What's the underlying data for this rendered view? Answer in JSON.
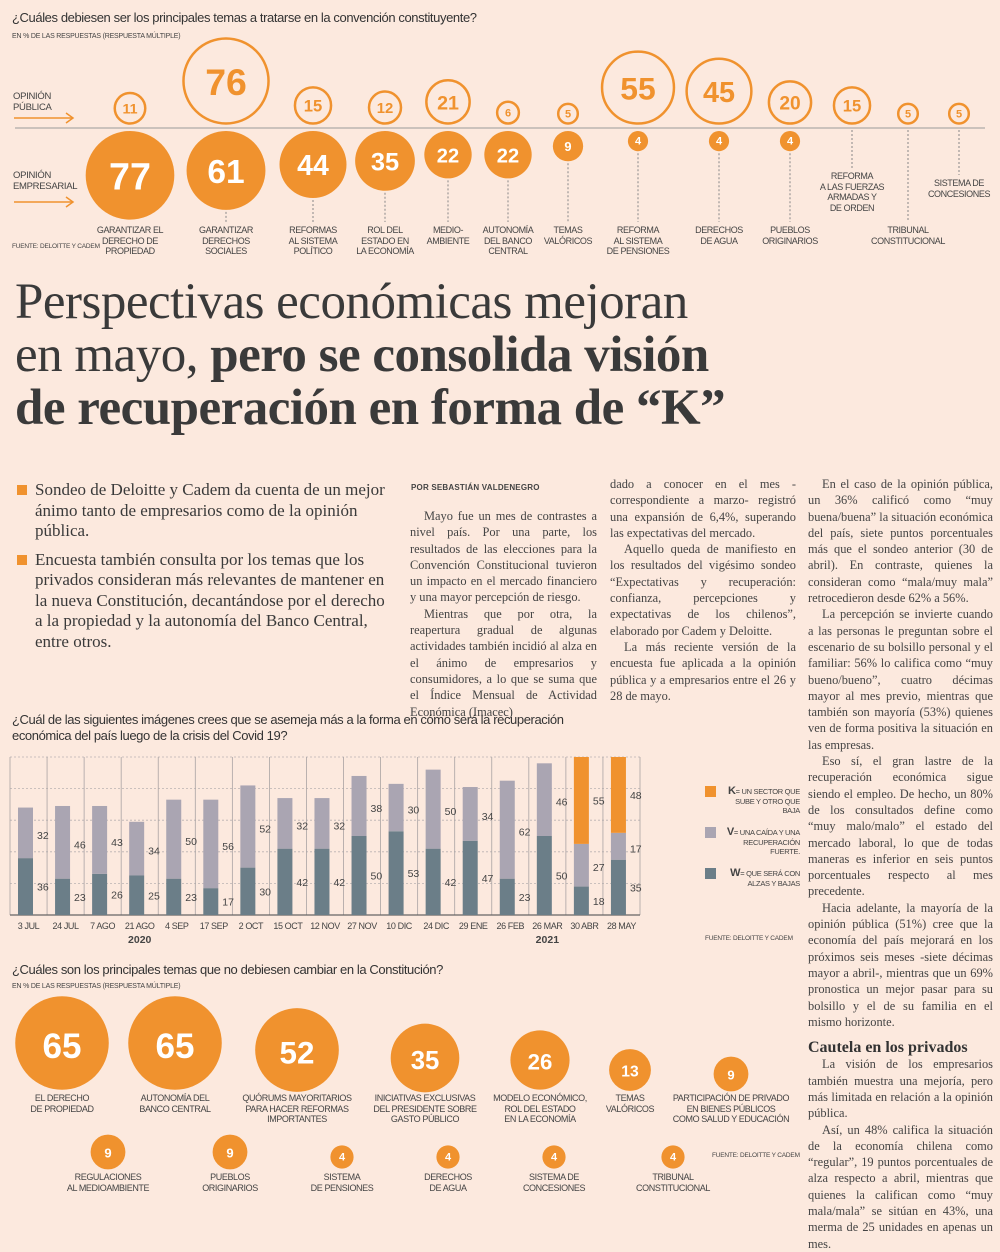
{
  "top_chart": {
    "title": "¿Cuáles debiesen ser los principales temas a tratarse en la convención constituyente?",
    "subtitle": "EN % DE LAS RESPUESTAS (RESPUESTA MÚLTIPLE)",
    "public_label": "OPINIÓN\nPÚBLICA",
    "business_label": "OPINIÓN\nEMPRESARIAL",
    "source": "FUENTE: DELOITTE Y CADEM",
    "accent_color": "#f0922e",
    "items": [
      {
        "label": "GARANTIZAR EL\nDERECHO DE\nPROPIEDAD",
        "public": 11,
        "business": 77
      },
      {
        "label": "GARANTIZAR\nDERECHOS\nSOCIALES",
        "public": 76,
        "business": 61
      },
      {
        "label": "REFORMAS\nAL SISTEMA\nPOLÍTICO",
        "public": 15,
        "business": 44
      },
      {
        "label": "ROL DEL\nESTADO EN\nLA ECONOMÍA",
        "public": 12,
        "business": 35
      },
      {
        "label": "MEDIO-\nAMBIENTE",
        "public": 21,
        "business": 22
      },
      {
        "label": "AUTONOMÍA\nDEL BANCO\nCENTRAL",
        "public": 6,
        "business": 22
      },
      {
        "label": "TEMAS\nVALÓRICOS",
        "public": 5,
        "business": 9
      },
      {
        "label": "REFORMA\nAL SISTEMA\nDE PENSIONES",
        "public": 55,
        "business": 4
      },
      {
        "label": "DERECHOS\nDE AGUA",
        "public": 45,
        "business": 4
      },
      {
        "label": "PUEBLOS\nORIGINARIOS",
        "public": 20,
        "business": 4
      },
      {
        "label": "REFORMA\nA LAS FUERZAS\nARMADAS Y\nDE ORDEN",
        "public": 15,
        "business": null
      },
      {
        "label": "TRIBUNAL\nCONSTITUCIONAL",
        "public": 5,
        "business": null
      },
      {
        "label": "SISTEMA DE\nCONCESIONES",
        "public": 5,
        "business": null
      }
    ]
  },
  "headline": {
    "light_1": "Perspectivas económicas mejoran",
    "light_2": "en mayo, ",
    "bold_2": "pero se consolida visión",
    "bold_3": "de recuperación en forma de “K”"
  },
  "bullets": [
    "Sondeo de Deloitte y Cadem da cuenta de un mejor ánimo tanto de empresarios como de la opinión pública.",
    "Encuesta también consulta por los temas que los privados consideran más relevantes de mantener en la nueva Constitución, decantándose por el derecho a la propiedad y la autonomía del Banco Central, entre otros."
  ],
  "article": {
    "byline": "POR SEBASTIÁN VALDENEGRO",
    "col1": [
      "Mayo fue un mes de contrastes a nivel país. Por una parte, los resultados de las elecciones para la Convención Constitucional tuvieron un impacto en el mercado financiero y una mayor percepción de riesgo.",
      "Mientras que por otra, la reapertura gradual de algunas actividades también incidió al alza en el ánimo de empresarios y consumidores, a lo que se suma que el Índice Mensual de Actividad Económica (Imacec)"
    ],
    "col2": [
      "dado a conocer en el mes -correspondiente a marzo- registró una expansión de 6,4%, superando las expectativas del mercado.",
      "Aquello queda de manifiesto en los resultados del vigésimo sondeo “Expectativas y recuperación: confianza, percepciones y expectativas de los chilenos”, elaborado por Cadem y Deloitte.",
      "La más reciente versión de la encuesta fue aplicada a la opinión pública y a empresarios entre el 26 y 28 de mayo."
    ],
    "col3": [
      "En el caso de la opinión pública, un 36% calificó como “muy buena/buena” la situación económica del país, siete puntos porcentuales más que el sondeo anterior (30 de abril). En contraste, quienes la consideran como “mala/muy mala” retrocedieron desde 62% a 56%.",
      "La percepción se invierte cuando a las personas le preguntan sobre el escenario de su bolsillo personal y el familiar: 56% lo califica como “muy bueno/bueno”, cuatro décimas mayor al mes previo, mientras que también son mayoría (53%) quienes ven de forma positiva la situación en las empresas.",
      "Eso sí, el gran lastre de la recuperación económica sigue siendo el empleo. De hecho, un 80% de los consultados define como “muy malo/malo” el estado del mercado laboral, lo que de todas maneras es inferior en seis puntos porcentuales respecto al mes precedente.",
      "Hacia adelante, la mayoría de la opinión pública (51%) cree que la economía del país mejorará en los próximos seis meses -siete décimas mayor a abril-, mientras que un 69% pronostica un mejor pasar para su bolsillo y el de su familia en el mismo horizonte."
    ],
    "subhead": "Cautela en los privados",
    "col3b": [
      "La visión de los empresarios también muestra una mejoría, pero más limitada en relación a la opinión pública.",
      "Así, un 48% califica la situación de la economía chilena como “regular”, 19 puntos porcentuales de alza respecto a abril, mientras que quienes la califican como “muy mala/mala” se sitúan en 43%, una merma de 25 unidades en apenas un mes."
    ]
  },
  "chart_data": {
    "type": "bar",
    "stacked": true,
    "title": "¿Cuál de las siguientes imágenes crees que se asemeja más a la forma en cómo será la recuperación económica del país luego de la crisis del Covid 19?",
    "categories": [
      "3 JUL",
      "24 JUL",
      "7 AGO",
      "21 AGO",
      "4 SEP",
      "17 SEP",
      "2 OCT",
      "15 OCT",
      "12 NOV",
      "27 NOV",
      "10 DIC",
      "24 DIC",
      "29 ENE",
      "26 FEB",
      "26 MAR",
      "30 ABR",
      "28 MAY"
    ],
    "year_labels": [
      {
        "label": "2020",
        "under": "21 AGO"
      },
      {
        "label": "2021",
        "under": "26 MAR"
      }
    ],
    "ylim": [
      0,
      100
    ],
    "grid": true,
    "legend_position": "right",
    "series": [
      {
        "name": "W",
        "legend": "QUE SERÁ CON ALZAS Y BAJAS",
        "color": "#6b7e88",
        "values": [
          36,
          23,
          26,
          25,
          23,
          17,
          30,
          42,
          42,
          50,
          53,
          42,
          47,
          23,
          50,
          18,
          35
        ]
      },
      {
        "name": "V",
        "legend": "UNA CAÍDA Y UNA RECUPERACIÓN FUERTE.",
        "color": "#aaa5b2",
        "values": [
          32,
          46,
          43,
          34,
          50,
          56,
          52,
          32,
          32,
          38,
          30,
          50,
          34,
          62,
          46,
          27,
          17
        ]
      },
      {
        "name": "K",
        "legend": "UN SECTOR QUE SUBE Y OTRO QUE BAJA",
        "color": "#f0922e",
        "values": [
          null,
          null,
          null,
          null,
          null,
          null,
          null,
          null,
          null,
          null,
          null,
          null,
          null,
          null,
          null,
          55,
          48
        ]
      }
    ],
    "source": "FUENTE: DELOITTE Y CADEM"
  },
  "bottom_chart": {
    "title": "¿Cuáles son los principales temas que no debiesen cambiar en la Constitución?",
    "subtitle": "EN % DE LAS RESPUESTAS (RESPUESTA MÚLTIPLE)",
    "source": "FUENTE: DELOITTE Y CADEM",
    "items": [
      {
        "label": "EL DERECHO\nDE PROPIEDAD",
        "value": 65
      },
      {
        "label": "AUTONOMÍA DEL\nBANCO CENTRAL",
        "value": 65
      },
      {
        "label": "QUÓRUMS MAYORITARIOS\nPARA HACER REFORMAS\nIMPORTANTES",
        "value": 52
      },
      {
        "label": "INICIATIVAS EXCLUSIVAS\nDEL PRESIDENTE SOBRE\nGASTO PÚBLICO",
        "value": 35
      },
      {
        "label": "MODELO ECONÓMICO,\nROL DEL ESTADO\nEN LA ECONOMÍA",
        "value": 26
      },
      {
        "label": "TEMAS\nVALÓRICOS",
        "value": 13
      },
      {
        "label": "PARTICIPACIÓN DE PRIVADO\nEN BIENES PÚBLICOS\nCOMO SALUD Y EDUCACIÓN",
        "value": 9
      },
      {
        "label": "REGULACIONES\nAL MEDIOAMBIENTE",
        "value": 9
      },
      {
        "label": "PUEBLOS\nORIGINARIOS",
        "value": 9
      },
      {
        "label": "SISTEMA\nDE PENSIONES",
        "value": 4
      },
      {
        "label": "DERECHOS\nDE AGUA",
        "value": 4
      },
      {
        "label": "SISTEMA DE\nCONCESIONES",
        "value": 4
      },
      {
        "label": "TRIBUNAL\nCONSTITUCIONAL",
        "value": 4
      }
    ]
  }
}
